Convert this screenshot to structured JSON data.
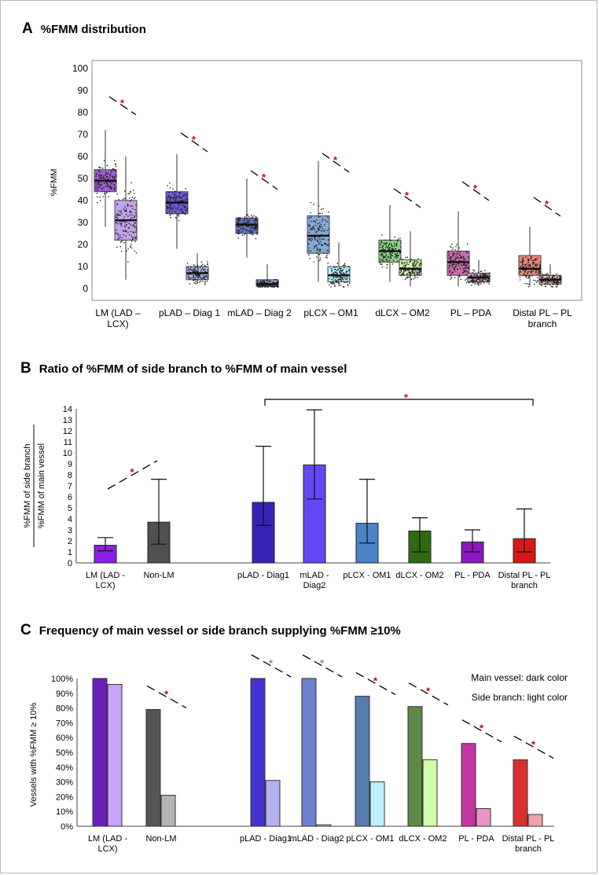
{
  "panels": {
    "a": {
      "letter": "A",
      "title": "%FMM distribution"
    },
    "b": {
      "letter": "B",
      "title": "Ratio of %FMM of side branch to %FMM of main vessel"
    },
    "c": {
      "letter": "C",
      "title": "Frequency of main vessel or side branch supplying %FMM ≥10%"
    }
  },
  "chart_data": [
    {
      "type": "box",
      "ylabel": "%FMM",
      "ylim": [
        0,
        100
      ],
      "yticks": [
        0,
        10,
        20,
        30,
        40,
        50,
        60,
        70,
        80,
        90,
        100
      ],
      "grid": false,
      "significance_mark": "*",
      "categories": [
        "LM (LAD –\nLCX)",
        "pLAD – Diag 1",
        "mLAD – Diag 2",
        "pLCX – OM1",
        "dLCX – OM2",
        "PL – PDA",
        "Distal PL – PL\nbranch"
      ],
      "series": [
        {
          "role": "main vessel",
          "boxes": [
            {
              "whislo": 28,
              "q1": 44,
              "med": 49,
              "q3": 54,
              "whishi": 72
            },
            {
              "whislo": 18,
              "q1": 34,
              "med": 39,
              "q3": 44,
              "whishi": 61
            },
            {
              "whislo": 14,
              "q1": 25,
              "med": 29,
              "q3": 32,
              "whishi": 50
            },
            {
              "whislo": 3,
              "q1": 16,
              "med": 24,
              "q3": 33,
              "whishi": 58
            },
            {
              "whislo": 3,
              "q1": 12,
              "med": 17,
              "q3": 22,
              "whishi": 38
            },
            {
              "whislo": 1,
              "q1": 6,
              "med": 12,
              "q3": 17,
              "whishi": 35
            },
            {
              "whislo": 1,
              "q1": 6,
              "med": 9,
              "q3": 15,
              "whishi": 28
            }
          ]
        },
        {
          "role": "side branch",
          "boxes": [
            {
              "whislo": 4,
              "q1": 22,
              "med": 31,
              "q3": 40,
              "whishi": 60
            },
            {
              "whislo": 2,
              "q1": 4,
              "med": 7,
              "q3": 10,
              "whishi": 16
            },
            {
              "whislo": 1,
              "q1": 1,
              "med": 2,
              "q3": 4,
              "whishi": 11
            },
            {
              "whislo": 1,
              "q1": 3,
              "med": 6,
              "q3": 10,
              "whishi": 21
            },
            {
              "whislo": 1,
              "q1": 6,
              "med": 9,
              "q3": 13,
              "whishi": 26
            },
            {
              "whislo": 1,
              "q1": 3,
              "med": 5,
              "q3": 7,
              "whishi": 13
            },
            {
              "whislo": 1,
              "q1": 2,
              "med": 4,
              "q3": 6,
              "whishi": 11
            }
          ]
        }
      ],
      "colors_main": [
        "#a35fd6",
        "#6c5ad6",
        "#6678c4",
        "#84a9d6",
        "#8fd08a",
        "#cc6ab0",
        "#e98a7b"
      ],
      "colors_side": [
        "#c2a3ea",
        "#a8b8ec",
        "#95a4dc",
        "#aeecf4",
        "#d6f8b0",
        "#e2a4d2",
        "#f2bfc0"
      ]
    },
    {
      "type": "bar",
      "ylabel": [
        "%FMM of side branch",
        "%FMM of main vessel"
      ],
      "ylim": [
        0,
        14
      ],
      "yticks": [
        0,
        1,
        2,
        3,
        4,
        5,
        6,
        7,
        8,
        9,
        10,
        11,
        12,
        13,
        14
      ],
      "grid": false,
      "error_bars": true,
      "significance_mark": "*",
      "categories": [
        "LM (LAD -\nLCX)",
        "Non-LM",
        "pLAD - Diag1",
        "mLAD -\nDiag2",
        "pLCX - OM1",
        "dLCX - OM2",
        "PL - PDA",
        "Distal PL - PL\nbranch"
      ],
      "values": [
        1.6,
        3.7,
        5.5,
        8.9,
        3.6,
        2.9,
        1.9,
        2.2
      ],
      "err_low": [
        1.1,
        1.7,
        3.4,
        5.8,
        1.8,
        1.0,
        1.0,
        1.0
      ],
      "err_high": [
        2.3,
        7.6,
        10.6,
        13.9,
        7.6,
        4.1,
        3.0,
        4.9
      ],
      "colors": [
        "#8a1fe6",
        "#505050",
        "#3523b8",
        "#6248f4",
        "#4a83c8",
        "#2f6a10",
        "#8d18c2",
        "#d81818"
      ]
    },
    {
      "type": "bar",
      "ylabel": "Vessels with %FMM ≥ 10%",
      "ylim": [
        0,
        100
      ],
      "yticks": [
        "0%",
        "10%",
        "20%",
        "30%",
        "40%",
        "50%",
        "60%",
        "70%",
        "80%",
        "90%",
        "100%"
      ],
      "grid": false,
      "annotations": [
        "Main vessel: dark color",
        "Side branch: light color"
      ],
      "categories": [
        "LM (LAD -\nLCX)",
        "Non-LM",
        "pLAD - Diag1",
        "mLAD - Diag2",
        "pLCX - OM1",
        "dLCX - OM2",
        "PL - PDA",
        "Distal PL - PL\nbranch"
      ],
      "series": [
        {
          "role": "main vessel",
          "values": [
            100,
            79,
            100,
            100,
            88,
            81,
            56,
            45
          ]
        },
        {
          "role": "side branch",
          "values": [
            96,
            21,
            31,
            1,
            30,
            45,
            12,
            8
          ]
        }
      ],
      "significance": [
        "",
        "red",
        "gray",
        "gray",
        "red",
        "red",
        "red",
        "red"
      ],
      "significance_mark": "*",
      "colors_main": [
        "#6a1fb8",
        "#555555",
        "#4433cc",
        "#6c82cc",
        "#587cae",
        "#5e8a46",
        "#c236a2",
        "#d83030"
      ],
      "colors_side": [
        "#caa2f6",
        "#b4b4b4",
        "#b4b2ee",
        "#c4d0f4",
        "#bff0fa",
        "#d2fdaa",
        "#e796c9",
        "#eda1a8"
      ]
    }
  ]
}
